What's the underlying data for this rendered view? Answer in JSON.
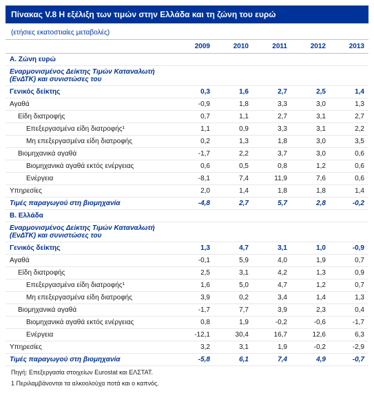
{
  "title": "Πίνακας V.8 Η εξέλιξη των τιμών στην Ελλάδα και τη ζώνη του ευρώ",
  "subtitle": "(ετήσιες εκατοστιαίες μεταβολές)",
  "years": [
    "2009",
    "2010",
    "2011",
    "2012",
    "2013"
  ],
  "rows": [
    {
      "cls": "section",
      "label": "Α. Ζώνη ευρώ",
      "v": [
        "",
        "",
        "",
        "",
        ""
      ]
    },
    {
      "cls": "italic",
      "label": "Εναρμονισμένος Δείκτης Τιμών Καταναλωτή (ΕνΔΤΚ) και συνιστώσες του",
      "v": [
        "",
        "",
        "",
        "",
        ""
      ]
    },
    {
      "cls": "gen",
      "label": "Γενικός δείκτης",
      "v": [
        "0,3",
        "1,6",
        "2,7",
        "2,5",
        "1,4"
      ]
    },
    {
      "cls": "",
      "label": "Αγαθά",
      "v": [
        "-0,9",
        "1,8",
        "3,3",
        "3,0",
        "1,3"
      ]
    },
    {
      "cls": "",
      "indent": 1,
      "label": "Είδη διατροφής",
      "v": [
        "0,7",
        "1,1",
        "2,7",
        "3,1",
        "2,7"
      ]
    },
    {
      "cls": "",
      "indent": 2,
      "label": "Επεξεργασμένα είδη διατροφής¹",
      "v": [
        "1,1",
        "0,9",
        "3,3",
        "3,1",
        "2,2"
      ]
    },
    {
      "cls": "",
      "indent": 2,
      "label": "Μη επεξεργασμένα είδη διατροφής",
      "v": [
        "0,2",
        "1,3",
        "1,8",
        "3,0",
        "3,5"
      ]
    },
    {
      "cls": "",
      "indent": 1,
      "label": "Βιομηχανικά αγαθά",
      "v": [
        "-1,7",
        "2,2",
        "3,7",
        "3,0",
        "0,6"
      ]
    },
    {
      "cls": "",
      "indent": 2,
      "label": "Βιομηχανικά αγαθά εκτός ενέργειας",
      "v": [
        "0,6",
        "0,5",
        "0,8",
        "1,2",
        "0,6"
      ]
    },
    {
      "cls": "",
      "indent": 2,
      "label": "Ενέργεια",
      "v": [
        "-8,1",
        "7,4",
        "11,9",
        "7,6",
        "0,6"
      ]
    },
    {
      "cls": "",
      "label": "Υπηρεσίες",
      "v": [
        "2,0",
        "1,4",
        "1,8",
        "1,8",
        "1,4"
      ]
    },
    {
      "cls": "italic",
      "label": "Τιμές παραγωγού στη βιομηχανία",
      "v": [
        "-4,8",
        "2,7",
        "5,7",
        "2,8",
        "-0,2"
      ]
    },
    {
      "cls": "section",
      "label": "Β. Ελλάδα",
      "v": [
        "",
        "",
        "",
        "",
        ""
      ]
    },
    {
      "cls": "italic",
      "label": "Εναρμονισμένος Δείκτης Τιμών Καταναλωτή (ΕνΔΤΚ) και συνιστώσες του",
      "v": [
        "",
        "",
        "",
        "",
        ""
      ]
    },
    {
      "cls": "gen",
      "label": "Γενικός δείκτης",
      "v": [
        "1,3",
        "4,7",
        "3,1",
        "1,0",
        "-0,9"
      ]
    },
    {
      "cls": "",
      "label": "Αγαθά",
      "v": [
        "-0,1",
        "5,9",
        "4,0",
        "1,9",
        "0,7"
      ]
    },
    {
      "cls": "",
      "indent": 1,
      "label": "Είδη διατροφής",
      "v": [
        "2,5",
        "3,1",
        "4,2",
        "1,3",
        "0,9"
      ]
    },
    {
      "cls": "",
      "indent": 2,
      "label": "Επεξεργασμένα είδη διατροφής¹",
      "v": [
        "1,6",
        "5,0",
        "4,7",
        "1,2",
        "0,7"
      ]
    },
    {
      "cls": "",
      "indent": 2,
      "label": "Μη επεξεργασμένα είδη διατροφής",
      "v": [
        "3,9",
        "0,2",
        "3,4",
        "1,4",
        "1,3"
      ]
    },
    {
      "cls": "",
      "indent": 1,
      "label": "Βιομηχανικά αγαθά",
      "v": [
        "-1,7",
        "7,7",
        "3,9",
        "2,3",
        "0,4"
      ]
    },
    {
      "cls": "",
      "indent": 2,
      "label": "Βιομηχανικά αγαθά εκτός ενέργειας",
      "v": [
        "0,8",
        "1,9",
        "-0,2",
        "-0,6",
        "-1,7"
      ]
    },
    {
      "cls": "",
      "indent": 2,
      "label": "Ενέργεια",
      "v": [
        "-12,1",
        "30,4",
        "16,7",
        "12,6",
        "6,3"
      ]
    },
    {
      "cls": "",
      "label": "Υπηρεσίες",
      "v": [
        "3,2",
        "3,1",
        "1,9",
        "-0,2",
        "-2,9"
      ]
    },
    {
      "cls": "italic",
      "label": "Τιμές παραγωγού στη βιομηχανία",
      "v": [
        "-5,8",
        "6,1",
        "7,4",
        "4,9",
        "-0,7"
      ]
    }
  ],
  "foot1": "Πηγή: Επεξεργασία στοιχείων Eurostat και ΕΛΣΤΑΤ.",
  "foot2": "1 Περιλαμβάνονται τα αλκοολούχα ποτά και ο καπνός."
}
